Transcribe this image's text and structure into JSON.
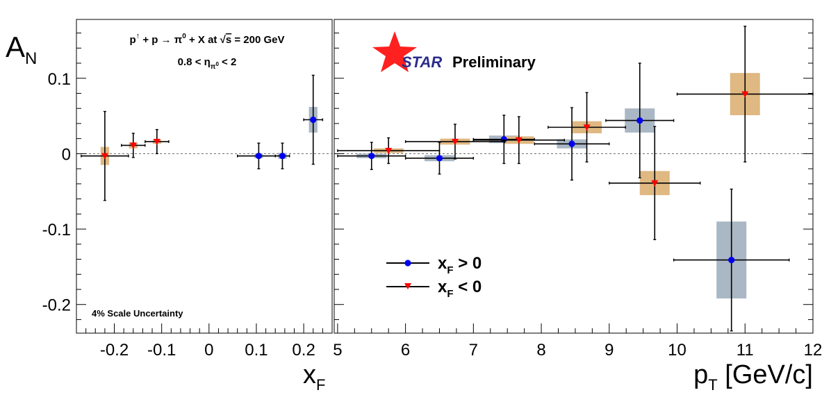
{
  "chart_data": [
    {
      "type": "scatter",
      "title": "p↑ + p → π⁰ + X at √s = 200 GeV",
      "subtitle": "0.8 < ηπ⁰ < 2",
      "annotation": "4% Scale Uncertainty",
      "ylabel": "A_N",
      "xlabel": "x_F",
      "xlim": [
        -0.28,
        0.26
      ],
      "ylim": [
        -0.238,
        0.178
      ],
      "xticks": [
        "-0.2",
        "-0.1",
        "0",
        "0.1",
        "0.2"
      ],
      "yticks": [
        "0.1",
        "0",
        "-0.1",
        "-0.2"
      ],
      "zero_line": true,
      "grid": false,
      "series": [
        {
          "name": "x_F > 0",
          "marker": "circle",
          "color": "#0000ee",
          "syst_color": "#aab7c4",
          "points": [
            {
              "x": 0.105,
              "y": -0.003,
              "xerr": 0.045,
              "yerr": 0.017,
              "syst": 0.003
            },
            {
              "x": 0.155,
              "y": -0.003,
              "xerr": 0.015,
              "yerr": 0.017,
              "syst": 0.004
            },
            {
              "x": 0.22,
              "y": 0.045,
              "xerr": 0.02,
              "yerr": 0.059,
              "syst": 0.017
            }
          ]
        },
        {
          "name": "x_F < 0",
          "marker": "triangle-down",
          "color": "#ff0000",
          "syst_color": "#dfb882",
          "points": [
            {
              "x": -0.22,
              "y": -0.003,
              "xerr": 0.05,
              "yerr": 0.059,
              "syst": 0.012
            },
            {
              "x": -0.16,
              "y": 0.011,
              "xerr": 0.025,
              "yerr": 0.016,
              "syst": 0.004
            },
            {
              "x": -0.11,
              "y": 0.016,
              "xerr": 0.025,
              "yerr": 0.016,
              "syst": 0.003
            }
          ]
        }
      ]
    },
    {
      "type": "scatter",
      "xlabel": "p_T [GeV/c]",
      "watermark": "STAR Preliminary",
      "xlim": [
        4.95,
        12.0
      ],
      "ylim": [
        -0.238,
        0.178
      ],
      "xticks": [
        "5",
        "6",
        "7",
        "8",
        "9",
        "10",
        "11",
        "12"
      ],
      "zero_line": true,
      "grid": false,
      "legend": {
        "placement": "bottom-center",
        "entries": [
          {
            "label": "x_F > 0",
            "marker": "circle",
            "color": "#0000ee"
          },
          {
            "label": "x_F < 0",
            "marker": "triangle-down",
            "color": "#ff0000"
          }
        ]
      },
      "series": [
        {
          "name": "x_F > 0",
          "marker": "circle",
          "color": "#0000ee",
          "syst_color": "#aab7c4",
          "points": [
            {
              "x": 5.5,
              "y": -0.003,
              "xerr": 0.5,
              "yerr": 0.018,
              "syst": 0.003
            },
            {
              "x": 6.5,
              "y": -0.006,
              "xerr": 0.5,
              "yerr": 0.021,
              "syst": 0.004
            },
            {
              "x": 7.45,
              "y": 0.019,
              "xerr": 0.45,
              "yerr": 0.032,
              "syst": 0.005
            },
            {
              "x": 8.45,
              "y": 0.013,
              "xerr": 0.55,
              "yerr": 0.048,
              "syst": 0.006
            },
            {
              "x": 9.45,
              "y": 0.044,
              "xerr": 0.5,
              "yerr": 0.076,
              "syst": 0.016
            },
            {
              "x": 10.8,
              "y": -0.141,
              "xerr": 0.85,
              "yerr": 0.094,
              "syst": 0.051
            }
          ]
        },
        {
          "name": "x_F < 0",
          "marker": "triangle-down",
          "color": "#ff0000",
          "syst_color": "#dfb882",
          "points": [
            {
              "x": 5.75,
              "y": 0.004,
              "xerr": 0.75,
              "yerr": 0.017,
              "syst": 0.003
            },
            {
              "x": 6.73,
              "y": 0.016,
              "xerr": 0.73,
              "yerr": 0.023,
              "syst": 0.004
            },
            {
              "x": 7.67,
              "y": 0.018,
              "xerr": 0.67,
              "yerr": 0.031,
              "syst": 0.005
            },
            {
              "x": 8.67,
              "y": 0.035,
              "xerr": 0.57,
              "yerr": 0.046,
              "syst": 0.008
            },
            {
              "x": 9.67,
              "y": -0.039,
              "xerr": 0.67,
              "yerr": 0.075,
              "syst": 0.016
            },
            {
              "x": 11.0,
              "y": 0.079,
              "xerr": 1.0,
              "yerr": 0.09,
              "syst": 0.028
            }
          ]
        }
      ]
    }
  ]
}
